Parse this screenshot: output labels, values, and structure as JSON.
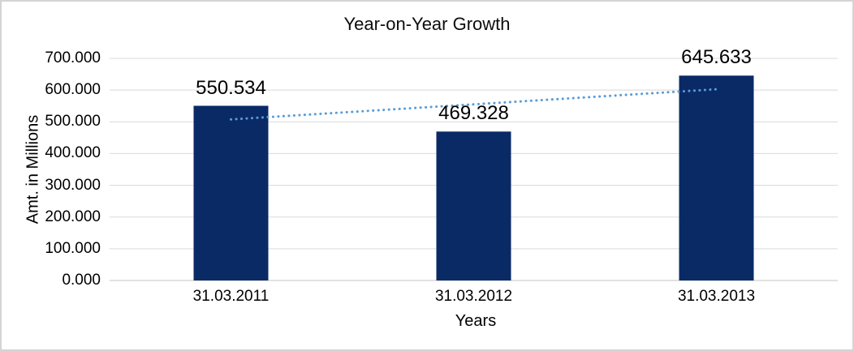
{
  "chart_data": {
    "type": "bar",
    "title": "Year-on-Year Growth",
    "xlabel": "Years",
    "ylabel": "Amt. in Millions",
    "categories": [
      "31.03.2011",
      "31.03.2012",
      "31.03.2013"
    ],
    "values": [
      550.534,
      469.328,
      645.633
    ],
    "data_labels": [
      "550.534",
      "469.328",
      "645.633"
    ],
    "y_ticks": [
      {
        "value": 700,
        "label": "700.000"
      },
      {
        "value": 600,
        "label": "600.000"
      },
      {
        "value": 500,
        "label": "500.000"
      },
      {
        "value": 400,
        "label": "400.000"
      },
      {
        "value": 300,
        "label": "300.000"
      },
      {
        "value": 200,
        "label": "200.000"
      },
      {
        "value": 100,
        "label": "100.000"
      },
      {
        "value": 0,
        "label": "0.000"
      }
    ],
    "ylim": [
      0,
      700
    ],
    "grid": "horizontal",
    "legend": "none",
    "bar_color": "#0a2a66",
    "trendline": {
      "style": "dotted",
      "color": "#5b9bd5",
      "start_value": 507.6,
      "end_value": 602.7,
      "spans_categories": [
        0,
        2
      ]
    }
  },
  "colors": {
    "grid": "#d9d9d9",
    "axis": "#c6c6c6",
    "text": "#000000",
    "background": "#ffffff",
    "border": "#d4d4d4"
  }
}
